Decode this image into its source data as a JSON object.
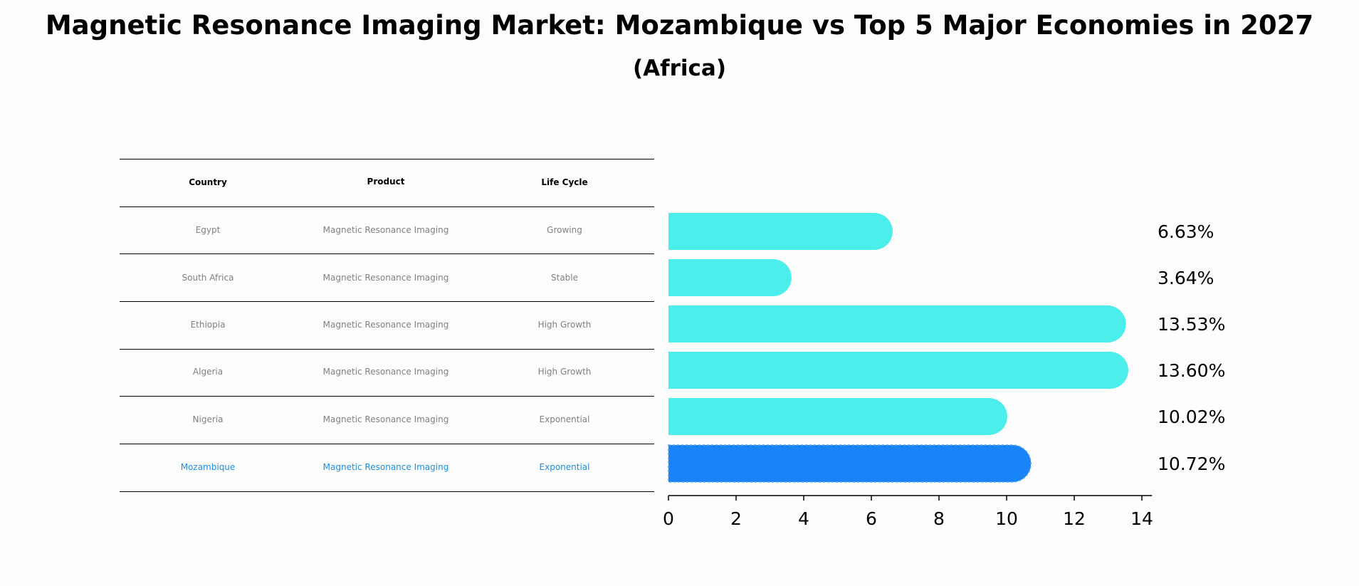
{
  "title": "Magnetic Resonance Imaging Market: Mozambique vs Top 5 Major Economies in 2027",
  "subtitle": "(Africa)",
  "table": {
    "headers": [
      "Country",
      "Product",
      "Life Cycle"
    ],
    "rows": [
      {
        "country": "Egypt",
        "product": "Magnetic Resonance Imaging",
        "life_cycle": "Growing"
      },
      {
        "country": "South Africa",
        "product": "Magnetic Resonance Imaging",
        "life_cycle": "Stable"
      },
      {
        "country": "Ethiopia",
        "product": "Magnetic Resonance Imaging",
        "life_cycle": "High Growth"
      },
      {
        "country": "Algeria",
        "product": "Magnetic Resonance Imaging",
        "life_cycle": "High Growth"
      },
      {
        "country": "Nigeria",
        "product": "Magnetic Resonance Imaging",
        "life_cycle": "Exponential"
      },
      {
        "country": "Mozambique",
        "product": "Magnetic Resonance Imaging",
        "life_cycle": "Exponential"
      }
    ]
  },
  "chart_data": {
    "type": "bar",
    "orientation": "horizontal",
    "categories": [
      "Egypt",
      "South Africa",
      "Ethiopia",
      "Algeria",
      "Nigeria",
      "Mozambique"
    ],
    "values": [
      6.63,
      3.64,
      13.53,
      13.6,
      10.02,
      10.72
    ],
    "value_labels": [
      "6.63%",
      "3.64%",
      "13.53%",
      "13.60%",
      "10.02%",
      "10.72%"
    ],
    "highlight": "Mozambique",
    "xlim": [
      0,
      14.3
    ],
    "xticks": [
      0,
      2,
      4,
      6,
      8,
      10,
      12,
      14
    ],
    "colors": {
      "default": "#4beeea",
      "highlight": "#1884f7",
      "table_highlight": "#1f8ee0"
    }
  }
}
